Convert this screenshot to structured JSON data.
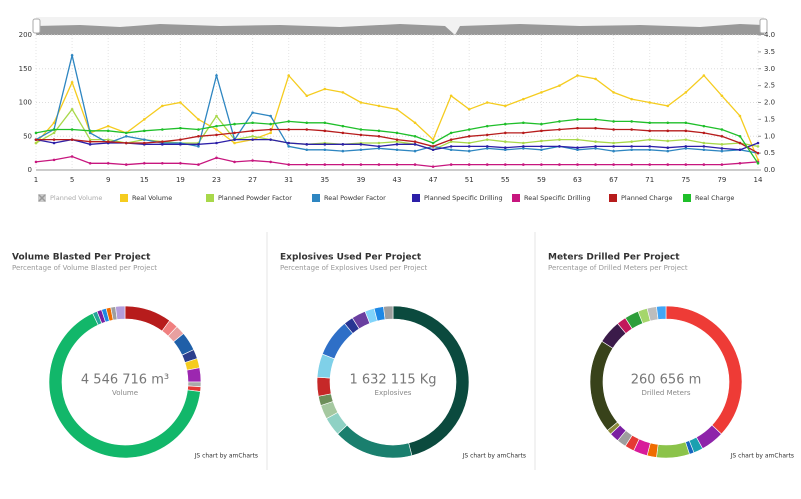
{
  "chart_data": [
    {
      "type": "line",
      "categories": [
        "1",
        null,
        "5",
        null,
        "9",
        null,
        "15",
        null,
        "19",
        null,
        "23",
        null,
        "27",
        null,
        "31",
        null,
        "35",
        null,
        "39",
        null,
        "43",
        null,
        "47",
        null,
        "51",
        null,
        "55",
        null,
        "59",
        null,
        "63",
        null,
        "67",
        null,
        "71",
        null,
        "75",
        null,
        "79",
        null,
        "14"
      ],
      "ylim": [
        0,
        200
      ],
      "yticks": [
        0,
        50,
        100,
        150,
        200
      ],
      "y2lim": [
        0,
        4
      ],
      "y2ticks": [
        {
          "value": 0,
          "label": "0.0"
        },
        0.5,
        {
          "value": 1,
          "label": "1.0"
        },
        1.5,
        {
          "value": 2,
          "label": "2.0"
        },
        2.5,
        {
          "value": 3,
          "label": "3.0"
        },
        3.5,
        {
          "value": 4,
          "label": "4.0"
        }
      ],
      "grid": true,
      "legend": "bottom",
      "series": [
        {
          "name": "Planned Volume",
          "color": "#999999",
          "hidden": true
        },
        {
          "name": "Real Volume",
          "color": "#f5cc1f",
          "values": [
            40,
            70,
            130,
            55,
            65,
            55,
            75,
            95,
            100,
            75,
            60,
            40,
            45,
            55,
            140,
            110,
            120,
            115,
            100,
            95,
            90,
            70,
            45,
            110,
            90,
            100,
            95,
            105,
            115,
            125,
            140,
            135,
            115,
            105,
            100,
            95,
            115,
            140,
            110,
            80,
            15
          ]
        },
        {
          "name": "Planned Powder Factor",
          "color": "#a8d84a",
          "values": [
            40,
            55,
            90,
            45,
            45,
            40,
            45,
            42,
            40,
            40,
            80,
            45,
            50,
            45,
            40,
            38,
            40,
            38,
            40,
            40,
            42,
            38,
            30,
            42,
            40,
            45,
            42,
            40,
            43,
            45,
            45,
            42,
            40,
            42,
            45,
            43,
            45,
            40,
            38,
            40,
            35
          ]
        },
        {
          "name": "Real Powder Factor",
          "color": "#2e86c1",
          "values": [
            45,
            60,
            170,
            55,
            40,
            50,
            45,
            40,
            40,
            35,
            140,
            45,
            85,
            80,
            35,
            30,
            30,
            28,
            30,
            32,
            30,
            28,
            35,
            30,
            28,
            32,
            30,
            32,
            30,
            35,
            30,
            32,
            28,
            30,
            30,
            28,
            32,
            30,
            28,
            30,
            25
          ]
        },
        {
          "name": "Planned Specific Drilling",
          "color": "#2c1fa8",
          "values": [
            45,
            40,
            45,
            38,
            40,
            40,
            38,
            38,
            38,
            38,
            40,
            45,
            45,
            45,
            40,
            38,
            38,
            38,
            38,
            35,
            38,
            38,
            30,
            35,
            35,
            35,
            33,
            35,
            35,
            35,
            33,
            35,
            35,
            35,
            35,
            33,
            35,
            35,
            32,
            30,
            40
          ]
        },
        {
          "name": "Real Specific Drilling",
          "color": "#c7167e",
          "values": [
            12,
            15,
            20,
            10,
            10,
            8,
            10,
            10,
            10,
            8,
            18,
            12,
            14,
            12,
            8,
            8,
            8,
            8,
            8,
            8,
            8,
            8,
            5,
            8,
            8,
            8,
            8,
            8,
            8,
            8,
            8,
            8,
            8,
            8,
            8,
            8,
            8,
            8,
            8,
            10,
            12
          ]
        },
        {
          "name": "Planned Charge",
          "color": "#b71c1c",
          "values": [
            45,
            45,
            45,
            42,
            42,
            40,
            40,
            42,
            45,
            50,
            52,
            55,
            58,
            60,
            60,
            60,
            58,
            55,
            52,
            50,
            45,
            42,
            35,
            45,
            50,
            52,
            55,
            55,
            58,
            60,
            62,
            62,
            60,
            60,
            58,
            58,
            58,
            55,
            50,
            40,
            25
          ]
        },
        {
          "name": "Real Charge",
          "color": "#1fbf2a",
          "values": [
            55,
            60,
            60,
            58,
            58,
            55,
            58,
            60,
            62,
            60,
            65,
            68,
            70,
            68,
            72,
            70,
            70,
            65,
            60,
            58,
            55,
            50,
            40,
            55,
            60,
            65,
            68,
            70,
            68,
            72,
            75,
            75,
            72,
            72,
            70,
            70,
            70,
            65,
            60,
            50,
            10
          ]
        }
      ]
    },
    {
      "type": "pie",
      "donut": true,
      "title": "Volume Blasted Per Project",
      "subtitle": "Percentage of Volume Blasted per Project",
      "center_label": "4 546 716 m³",
      "center_sublabel": "Volume",
      "credit": "JS chart by amCharts",
      "values": [
        10,
        2,
        2,
        4,
        2,
        2,
        3,
        1,
        1,
        66,
        1,
        1,
        1,
        1,
        1,
        2
      ],
      "colors": [
        "#b71c1c",
        "#f08080",
        "#e8a0a0",
        "#1f5fa8",
        "#2c3e8c",
        "#f5cc1f",
        "#9c27b0",
        "#aaaaaa",
        "#e53935",
        "#12b76a",
        "#26a69a",
        "#7b1fa2",
        "#1e88e5",
        "#ef6c00",
        "#9e9e9e",
        "#b39ddb"
      ]
    },
    {
      "type": "pie",
      "donut": true,
      "title": "Explosives Used Per Project",
      "subtitle": "Percentage of Explosives Used per Project",
      "center_label": "1 632 115 Kg",
      "center_sublabel": "Explosives",
      "credit": "JS chart by amCharts",
      "values": [
        46,
        17,
        4,
        3,
        2,
        4,
        5,
        8,
        2,
        3,
        2,
        2,
        2
      ],
      "colors": [
        "#0b4a3e",
        "#1a7f6e",
        "#8fd1c4",
        "#a5c8a0",
        "#6d8f5a",
        "#c62828",
        "#7fd0e8",
        "#2e6fc7",
        "#283593",
        "#6a3fa0",
        "#81d4fa",
        "#1e88e5",
        "#9e9e9e"
      ]
    },
    {
      "type": "pie",
      "donut": true,
      "title": "Meters Drilled Per Project",
      "subtitle": "Percentage of Drilled Meters per Project",
      "center_label": "260 656 m",
      "center_sublabel": "Drilled Meters",
      "credit": "JS chart by amCharts",
      "values": [
        37,
        5,
        2,
        1,
        7,
        2,
        3,
        2,
        2,
        2,
        1,
        20,
        5,
        2,
        3,
        2,
        2,
        2
      ],
      "colors": [
        "#ee3b36",
        "#8e24aa",
        "#1ba0b0",
        "#1565c0",
        "#8bc34a",
        "#ef6c00",
        "#d81b9a",
        "#e53935",
        "#9e9e9e",
        "#7b1fa2",
        "#8a8a3a",
        "#38421a",
        "#3b1b4a",
        "#c2185b",
        "#2e9e3a",
        "#a5d66b",
        "#bdbdbd",
        "#42a5f5"
      ]
    }
  ]
}
